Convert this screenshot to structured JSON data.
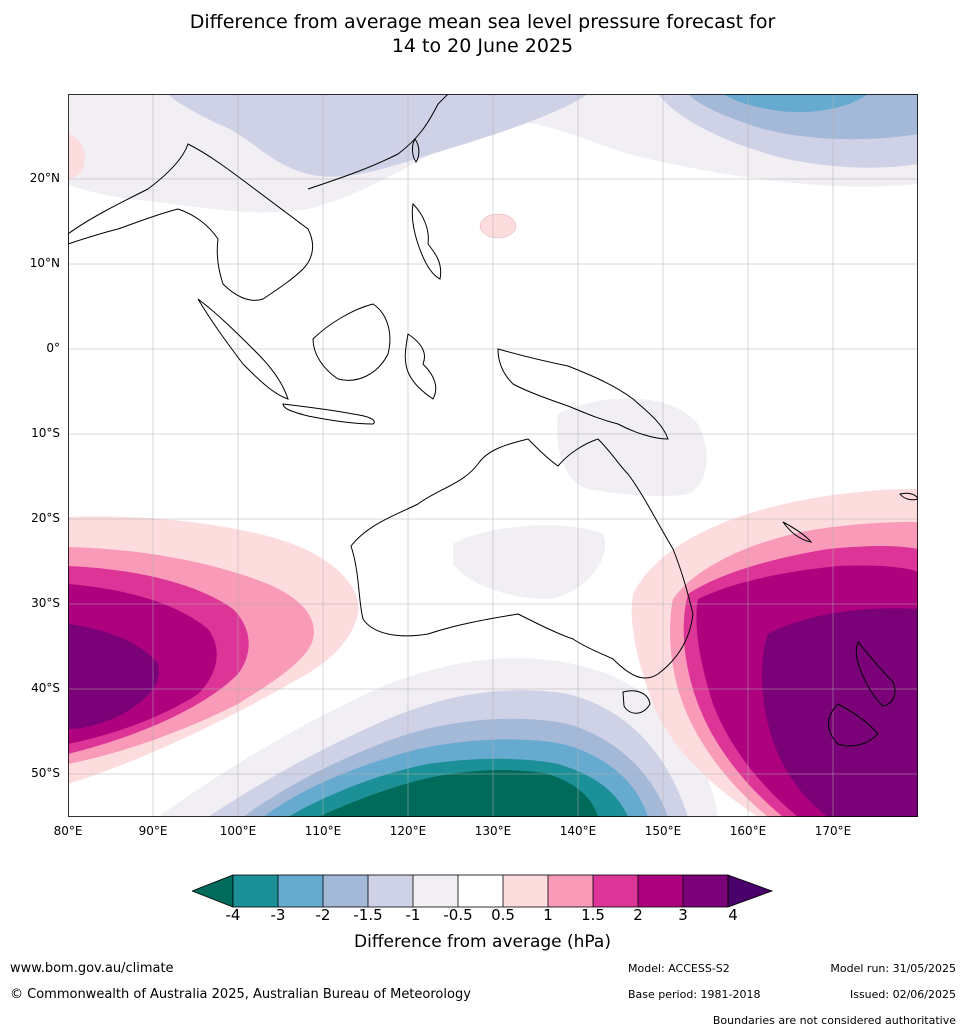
{
  "title": {
    "line1": "Difference from average mean sea level pressure forecast for",
    "line2": "14 to 20 June 2025"
  },
  "axes": {
    "lat_labels": [
      "20°N",
      "10°N",
      "0°",
      "10°S",
      "20°S",
      "30°S",
      "40°S",
      "50°S"
    ],
    "lon_labels": [
      "80°E",
      "90°E",
      "100°E",
      "110°E",
      "120°E",
      "130°E",
      "140°E",
      "150°E",
      "160°E",
      "170°E"
    ],
    "lat_range": [
      -55,
      30
    ],
    "lon_range": [
      80,
      180
    ]
  },
  "colorbar": {
    "ticks": [
      "-4",
      "-3",
      "-2",
      "-1.5",
      "-1",
      "-0.5",
      "0.5",
      "1",
      "1.5",
      "2",
      "3",
      "4"
    ],
    "colors": [
      "#006b5b",
      "#1b9096",
      "#67aad0",
      "#a4b8d8",
      "#cfd1e6",
      "#f1eef4",
      "#ffffff",
      "#fddcdd",
      "#f89ab8",
      "#dd3497",
      "#ae017e",
      "#7a0177",
      "#49006a"
    ],
    "label": "Difference from average (hPa)"
  },
  "footer": {
    "website": "www.bom.gov.au/climate",
    "copyright": "© Commonwealth of Australia 2025, Australian Bureau of Meteorology",
    "model": "Model: ACCESS-S2",
    "base_period": "Base period: 1981-2018",
    "model_run": "Model run: 31/05/2025",
    "issued": "Issued: 02/06/2025",
    "boundaries_note": "Boundaries are not considered authoritative"
  }
}
